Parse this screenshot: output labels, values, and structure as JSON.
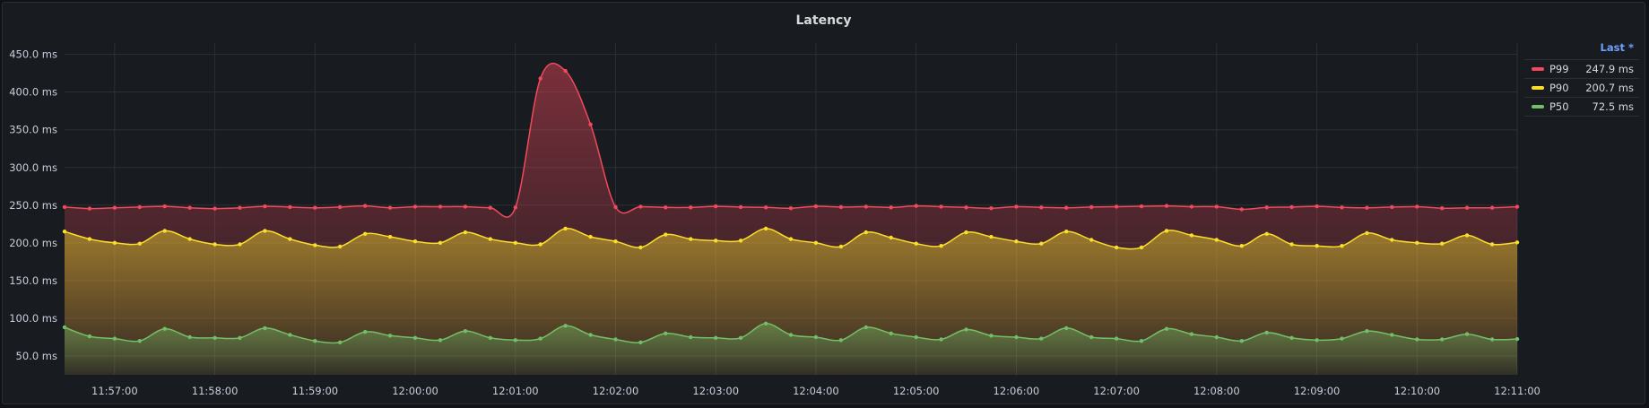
{
  "panel": {
    "title": "Latency"
  },
  "legend": {
    "header": "Last *",
    "items": [
      {
        "name": "P99",
        "value": "247.9 ms",
        "color": "#f2495c"
      },
      {
        "name": "P90",
        "value": "200.7 ms",
        "color": "#fade2a"
      },
      {
        "name": "P50",
        "value": "72.5 ms",
        "color": "#73bf69"
      }
    ]
  },
  "chart_data": {
    "type": "area",
    "title": "Latency",
    "xlabel": "",
    "ylabel": "",
    "y_unit": "ms",
    "ylim": [
      25,
      465
    ],
    "y_ticks": [
      50,
      100,
      150,
      200,
      250,
      300,
      350,
      400,
      450
    ],
    "y_tick_labels": [
      "50.0 ms",
      "100.0 ms",
      "150.0 ms",
      "200.0 ms",
      "250.0 ms",
      "300.0 ms",
      "350.0 ms",
      "400.0 ms",
      "450.0 ms"
    ],
    "x_range": [
      "11:56:30",
      "12:11:00"
    ],
    "x_tick_labels": [
      "11:57:00",
      "11:58:00",
      "11:59:00",
      "12:00:00",
      "12:01:00",
      "12:02:00",
      "12:03:00",
      "12:04:00",
      "12:05:00",
      "12:06:00",
      "12:07:00",
      "12:08:00",
      "12:09:00",
      "12:10:00",
      "12:11:00"
    ],
    "grid": true,
    "legend_position": "right",
    "x": [
      "11:56:30",
      "11:56:45",
      "11:57:00",
      "11:57:15",
      "11:57:30",
      "11:57:45",
      "11:58:00",
      "11:58:15",
      "11:58:30",
      "11:58:45",
      "11:59:00",
      "11:59:15",
      "11:59:30",
      "11:59:45",
      "12:00:00",
      "12:00:15",
      "12:00:30",
      "12:00:45",
      "12:01:00",
      "12:01:15",
      "12:01:30",
      "12:01:45",
      "12:02:00",
      "12:02:15",
      "12:02:30",
      "12:02:45",
      "12:03:00",
      "12:03:15",
      "12:03:30",
      "12:03:45",
      "12:04:00",
      "12:04:15",
      "12:04:30",
      "12:04:45",
      "12:05:00",
      "12:05:15",
      "12:05:30",
      "12:05:45",
      "12:06:00",
      "12:06:15",
      "12:06:30",
      "12:06:45",
      "12:07:00",
      "12:07:15",
      "12:07:30",
      "12:07:45",
      "12:08:00",
      "12:08:15",
      "12:08:30",
      "12:08:45",
      "12:09:00",
      "12:09:15",
      "12:09:30",
      "12:09:45",
      "12:10:00",
      "12:10:15",
      "12:10:30",
      "12:10:45",
      "12:11:00"
    ],
    "series": [
      {
        "name": "P99",
        "color": "#f2495c",
        "values": [
          247.5,
          245.5,
          246.5,
          247.5,
          248.5,
          246.5,
          245.5,
          246.5,
          248.5,
          247.5,
          246.5,
          247.5,
          249.0,
          246.5,
          248.0,
          248.0,
          248.0,
          246.5,
          247.0,
          418.0,
          428.0,
          357.0,
          247.5,
          248.0,
          247.0,
          247.0,
          248.5,
          247.5,
          247.0,
          246.0,
          248.5,
          247.5,
          248.0,
          247.0,
          249.0,
          248.0,
          247.0,
          246.0,
          248.0,
          247.0,
          246.5,
          247.5,
          248.0,
          248.5,
          249.0,
          248.0,
          248.0,
          244.5,
          247.0,
          247.5,
          248.5,
          247.0,
          246.5,
          247.5,
          248.0,
          246.0,
          246.5,
          246.5,
          247.9
        ]
      },
      {
        "name": "P90",
        "color": "#fade2a",
        "values": [
          215.0,
          205.0,
          200.0,
          199.0,
          216.0,
          205.0,
          198.0,
          198.0,
          216.0,
          205.0,
          197.0,
          195.0,
          212.0,
          208.0,
          202.0,
          200.0,
          214.0,
          205.0,
          200.0,
          198.0,
          219.0,
          208.0,
          202.0,
          194.0,
          211.0,
          205.0,
          203.0,
          203.0,
          219.0,
          205.0,
          200.0,
          195.0,
          214.0,
          207.0,
          199.0,
          196.0,
          214.0,
          208.0,
          202.0,
          199.0,
          215.0,
          204.0,
          194.0,
          194.0,
          216.0,
          210.0,
          204.0,
          196.0,
          212.0,
          198.0,
          196.0,
          196.0,
          213.0,
          204.0,
          200.0,
          199.0,
          210.0,
          198.0,
          200.7
        ]
      },
      {
        "name": "P50",
        "color": "#73bf69",
        "values": [
          88.0,
          76.0,
          73.0,
          70.0,
          86.0,
          75.0,
          74.0,
          74.0,
          87.0,
          78.0,
          70.0,
          68.0,
          82.0,
          77.0,
          74.0,
          71.0,
          83.0,
          74.0,
          71.0,
          73.0,
          90.0,
          78.0,
          72.0,
          68.0,
          80.0,
          75.0,
          74.0,
          74.0,
          93.0,
          78.0,
          75.0,
          71.0,
          88.0,
          80.0,
          75.0,
          72.0,
          85.0,
          77.0,
          75.0,
          73.0,
          87.0,
          75.0,
          73.0,
          70.0,
          86.0,
          79.0,
          75.0,
          70.0,
          81.0,
          74.0,
          71.0,
          73.0,
          83.0,
          78.0,
          72.0,
          72.0,
          79.0,
          72.0,
          72.5
        ]
      }
    ]
  }
}
